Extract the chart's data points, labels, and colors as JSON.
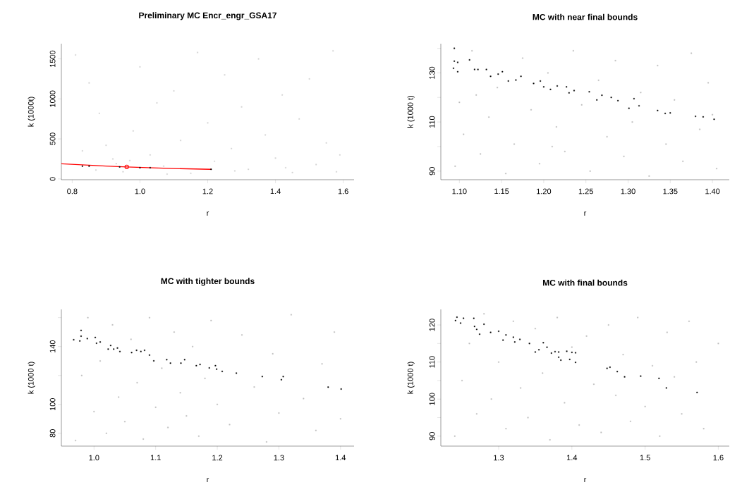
{
  "chart_data": [
    {
      "type": "scatter",
      "title": "Preliminary MC Encr_engr_GSA17",
      "xlabel": "r",
      "ylabel": "k (1000t)",
      "xlim": [
        0.768,
        1.632
      ],
      "ylim": [
        -10,
        1690
      ],
      "xticks": [
        0.8,
        {
          "value": 1,
          "label": "1.0"
        },
        1.2,
        1.4,
        1.6
      ],
      "yticks": [
        0,
        500,
        1000,
        1500
      ],
      "series": [
        {
          "color": "#d3d3d3",
          "marker": "square",
          "x": [
            0.81,
            0.85,
            0.88,
            0.9,
            0.92,
            0.95,
            0.98,
            1.0,
            1.03,
            1.05,
            1.07,
            1.1,
            1.12,
            1.15,
            1.17,
            1.2,
            1.22,
            1.25,
            1.27,
            1.3,
            1.32,
            1.35,
            1.37,
            1.4,
            1.42,
            1.45,
            1.47,
            1.5,
            1.52,
            1.55,
            1.57,
            1.59,
            0.83,
            0.87,
            0.93,
            1.08,
            1.28,
            1.43,
            1.58,
            0.97
          ],
          "values": [
            1550,
            1200,
            820,
            420,
            250,
            90,
            600,
            1400,
            300,
            950,
            160,
            1100,
            480,
            70,
            1580,
            700,
            220,
            1300,
            380,
            900,
            120,
            1500,
            550,
            260,
            1050,
            80,
            750,
            1250,
            180,
            450,
            1600,
            300,
            350,
            110,
            190,
            60,
            100,
            140,
            90,
            230
          ]
        },
        {
          "color": "#000000",
          "marker": "square",
          "x": [
            0.83,
            0.85,
            0.94,
            1.0,
            1.03,
            1.21
          ],
          "values": [
            160,
            160,
            150,
            140,
            140,
            120
          ]
        },
        {
          "type": "line",
          "color": "#ff0000",
          "marker": "none",
          "line_style": "solid",
          "x": [
            0.768,
            0.9,
            0.961,
            1.1,
            1.211
          ],
          "values": [
            190,
            160,
            150,
            130,
            120
          ]
        },
        {
          "color": "#ff0000",
          "marker": "circle",
          "x": [
            0.961
          ],
          "values": [
            150
          ]
        }
      ]
    },
    {
      "type": "scatter",
      "title": "MC with near final bounds",
      "xlabel": "r",
      "ylabel": "k (1000 t)",
      "xlim": [
        1.078,
        1.42
      ],
      "ylim": [
        86.5,
        141.9
      ],
      "xticks": [
        {
          "value": 1.1,
          "label": "1.10"
        },
        1.15,
        {
          "value": 1.2,
          "label": "1.20"
        },
        1.25,
        {
          "value": 1.3,
          "label": "1.30"
        },
        1.35,
        {
          "value": 1.4,
          "label": "1.40"
        }
      ],
      "yticks": [
        90,
        {
          "value": 100,
          "label": null
        },
        110,
        {
          "value": 120,
          "label": null
        },
        130,
        {
          "value": 140,
          "label": null
        }
      ],
      "series": [
        {
          "color": "#bebebe",
          "marker": "square",
          "x": [
            1.095,
            1.1,
            1.105,
            1.115,
            1.125,
            1.135,
            1.145,
            1.155,
            1.165,
            1.175,
            1.185,
            1.195,
            1.205,
            1.215,
            1.225,
            1.235,
            1.245,
            1.255,
            1.265,
            1.275,
            1.285,
            1.295,
            1.305,
            1.315,
            1.325,
            1.335,
            1.345,
            1.355,
            1.365,
            1.375,
            1.385,
            1.395,
            1.405,
            1.4,
            1.12,
            1.21
          ],
          "values": [
            92,
            118,
            105,
            139,
            97,
            112,
            124,
            89,
            101,
            136,
            115,
            93,
            130,
            108,
            98,
            139,
            117,
            90,
            127,
            104,
            135,
            96,
            110,
            122,
            88,
            133,
            101,
            119,
            94,
            138,
            107,
            126,
            91,
            113,
            121,
            100
          ]
        },
        {
          "color": "#000000",
          "marker": "square",
          "x": [
            1.093,
            1.094,
            1.098,
            1.098,
            1.094,
            1.112,
            1.118,
            1.122,
            1.132,
            1.137,
            1.146,
            1.151,
            1.158,
            1.167,
            1.173,
            1.188,
            1.196,
            1.2,
            1.208,
            1.216,
            1.227,
            1.23,
            1.236,
            1.254,
            1.263,
            1.269,
            1.28,
            1.288,
            1.301,
            1.307,
            1.313,
            1.335,
            1.344,
            1.35,
            1.38,
            1.389,
            1.402
          ],
          "values": [
            131.9,
            134.8,
            134.3,
            130.5,
            140,
            135.3,
            131.4,
            131.4,
            131.4,
            128.6,
            129.5,
            130.5,
            126.7,
            127.1,
            128.6,
            125.7,
            126.7,
            124.3,
            123.3,
            124.7,
            124.3,
            121.9,
            122.8,
            122.3,
            119,
            120.9,
            120,
            118.7,
            115.6,
            119.5,
            116.6,
            114.7,
            113.5,
            113.7,
            112.3,
            112.1,
            111.1
          ]
        }
      ]
    },
    {
      "type": "scatter",
      "title": "MC with tighter bounds",
      "xlabel": "r",
      "ylabel": "k (1000 t)",
      "xlim": [
        0.947,
        1.422
      ],
      "ylim": [
        71.1,
        165.7
      ],
      "xticks": [
        {
          "value": 1,
          "label": "1.0"
        },
        1.1,
        1.2,
        1.3,
        1.4
      ],
      "yticks": [
        80,
        100,
        {
          "value": 120,
          "label": null
        },
        140,
        {
          "value": 160,
          "label": null
        }
      ],
      "series": [
        {
          "color": "#bebebe",
          "marker": "square",
          "x": [
            0.97,
            0.98,
            0.99,
            1.0,
            1.01,
            1.02,
            1.03,
            1.04,
            1.05,
            1.06,
            1.07,
            1.08,
            1.09,
            1.1,
            1.11,
            1.12,
            1.13,
            1.14,
            1.15,
            1.16,
            1.17,
            1.18,
            1.19,
            1.2,
            1.22,
            1.24,
            1.26,
            1.28,
            1.29,
            1.3,
            1.32,
            1.34,
            1.36,
            1.37,
            1.39,
            1.4
          ],
          "values": [
            75,
            120,
            160,
            95,
            130,
            80,
            155,
            105,
            88,
            145,
            115,
            76,
            160,
            98,
            125,
            84,
            150,
            108,
            92,
            140,
            78,
            118,
            158,
            100,
            86,
            148,
            112,
            74,
            135,
            94,
            162,
            104,
            82,
            128,
            150,
            90
          ]
        },
        {
          "color": "#000000",
          "marker": "square",
          "x": [
            0.967,
            0.977,
            0.979,
            0.979,
            0.989,
            1.002,
            1.004,
            1.01,
            1.023,
            1.027,
            1.032,
            1.038,
            1.042,
            1.061,
            1.069,
            1.076,
            1.082,
            1.09,
            1.097,
            1.118,
            1.124,
            1.141,
            1.147,
            1.166,
            1.172,
            1.187,
            1.197,
            1.199,
            1.208,
            1.231,
            1.273,
            1.304,
            1.307,
            1.38,
            1.401
          ],
          "values": [
            144.7,
            143.9,
            151.2,
            147.2,
            145.5,
            146.3,
            142.3,
            143.1,
            138.2,
            140.7,
            138.2,
            139,
            136.6,
            135.8,
            137.4,
            136.6,
            137.4,
            134.1,
            130.1,
            130.9,
            128.5,
            128.5,
            130.9,
            126.8,
            127.6,
            125.2,
            126.8,
            124.4,
            122.8,
            121.6,
            119.2,
            117.1,
            119.2,
            111.9,
            110.6
          ]
        }
      ]
    },
    {
      "type": "scatter",
      "title": "MC with final bounds",
      "xlabel": "r",
      "ylabel": "k (1000 t)",
      "xlim": [
        1.221,
        1.615
      ],
      "ylim": [
        87.3,
        124.2
      ],
      "xticks": [
        1.3,
        1.4,
        1.5,
        1.6
      ],
      "yticks": [
        90,
        {
          "value": 95,
          "label": null
        },
        100,
        {
          "value": 105,
          "label": null
        },
        110,
        {
          "value": 115,
          "label": null
        },
        120
      ],
      "series": [
        {
          "color": "#bebebe",
          "marker": "square",
          "x": [
            1.24,
            1.25,
            1.26,
            1.27,
            1.28,
            1.29,
            1.3,
            1.31,
            1.32,
            1.33,
            1.34,
            1.35,
            1.36,
            1.37,
            1.38,
            1.39,
            1.4,
            1.41,
            1.42,
            1.43,
            1.44,
            1.45,
            1.46,
            1.47,
            1.48,
            1.49,
            1.5,
            1.51,
            1.52,
            1.53,
            1.54,
            1.55,
            1.56,
            1.57,
            1.58,
            1.6
          ],
          "values": [
            90,
            105,
            115,
            96,
            123,
            100,
            110,
            92,
            121,
            103,
            95,
            119,
            107,
            89,
            122,
            99,
            114,
            93,
            117,
            104,
            91,
            120,
            101,
            112,
            94,
            122,
            98,
            109,
            90,
            118,
            106,
            96,
            121,
            110,
            92,
            115
          ]
        },
        {
          "color": "#000000",
          "marker": "square",
          "x": [
            1.241,
            1.243,
            1.248,
            1.252,
            1.266,
            1.267,
            1.27,
            1.274,
            1.28,
            1.289,
            1.3,
            1.306,
            1.31,
            1.32,
            1.322,
            1.329,
            1.342,
            1.35,
            1.355,
            1.361,
            1.366,
            1.372,
            1.377,
            1.382,
            1.382,
            1.385,
            1.393,
            1.397,
            1.4,
            1.405,
            1.405,
            1.448,
            1.452,
            1.462,
            1.472,
            1.494,
            1.519,
            1.529,
            1.571
          ],
          "values": [
            121.2,
            122.1,
            120.5,
            121.8,
            121.8,
            119.6,
            118.8,
            117.5,
            120.2,
            118,
            118.3,
            115.9,
            117.3,
            116.7,
            115.4,
            116.1,
            115,
            112.7,
            113.3,
            115.2,
            114,
            112.4,
            112.8,
            112.7,
            111.3,
            110.5,
            112.9,
            110.7,
            112.6,
            112.5,
            109.9,
            108.3,
            108.6,
            107.4,
            106,
            106.2,
            105.6,
            103,
            101.8
          ]
        }
      ]
    }
  ]
}
